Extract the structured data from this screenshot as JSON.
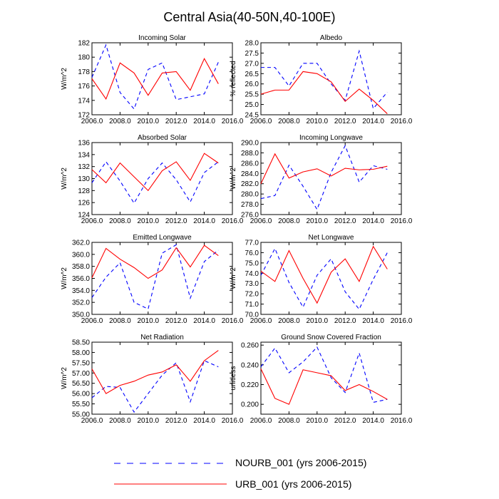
{
  "figure": {
    "title": "Central Asia(40-50N,40-100E)",
    "colors": {
      "nourb": "#0000ff",
      "urb": "#ff0000",
      "axis": "#000000"
    }
  },
  "legend": {
    "items": [
      {
        "label": "NOURB_001 (yrs 2006-2015)",
        "style": "dashed",
        "color": "#0000ff"
      },
      {
        "label": "URB_001 (yrs 2006-2015)",
        "style": "solid",
        "color": "#ff0000"
      }
    ]
  },
  "chart_data": [
    {
      "type": "line",
      "title": "Incoming Solar",
      "ylabel": "W/m^2",
      "xlim": [
        2006,
        2016
      ],
      "xticks": [
        "2006.0",
        "2008.0",
        "2010.0",
        "2012.0",
        "2014.0",
        "2016.0"
      ],
      "ylim": [
        172,
        182
      ],
      "yticks": [
        "172",
        "174",
        "176",
        "178",
        "180",
        "182"
      ],
      "x": [
        2006,
        2007,
        2008,
        2009,
        2010,
        2011,
        2012,
        2013,
        2014,
        2015
      ],
      "series": [
        {
          "name": "NOURB_001",
          "values": [
            177.2,
            181.7,
            175.1,
            172.8,
            178.3,
            179.2,
            174.1,
            174.5,
            174.9,
            179.3
          ]
        },
        {
          "name": "URB_001",
          "values": [
            177.0,
            174.2,
            179.2,
            177.8,
            174.7,
            177.8,
            178.0,
            175.4,
            179.8,
            176.3
          ]
        }
      ]
    },
    {
      "type": "line",
      "title": "Albedo",
      "ylabel": "% reflected",
      "xlim": [
        2006,
        2016
      ],
      "xticks": [
        "2006.0",
        "2008.0",
        "2010.0",
        "2012.0",
        "2014.0",
        "2016.0"
      ],
      "ylim": [
        24.5,
        28.0
      ],
      "yticks": [
        "24.5",
        "25.0",
        "25.5",
        "26.0",
        "26.5",
        "27.0",
        "27.5",
        "28.0"
      ],
      "x": [
        2006,
        2007,
        2008,
        2009,
        2010,
        2011,
        2012,
        2013,
        2014,
        2015
      ],
      "series": [
        {
          "name": "NOURB_001",
          "values": [
            26.8,
            26.8,
            25.9,
            27.0,
            27.0,
            26.0,
            25.2,
            27.6,
            24.8,
            25.6
          ]
        },
        {
          "name": "URB_001",
          "values": [
            25.5,
            25.7,
            25.7,
            26.6,
            26.5,
            26.1,
            25.15,
            25.75,
            25.2,
            24.55
          ]
        }
      ]
    },
    {
      "type": "line",
      "title": "Absorbed Solar",
      "ylabel": "W/m^2",
      "xlim": [
        2006,
        2016
      ],
      "xticks": [
        "2006.0",
        "2008.0",
        "2010.0",
        "2012.0",
        "2014.0",
        "2016.0"
      ],
      "ylim": [
        124,
        136
      ],
      "yticks": [
        "124",
        "126",
        "128",
        "130",
        "132",
        "134",
        "136"
      ],
      "x": [
        2006,
        2007,
        2008,
        2009,
        2010,
        2011,
        2012,
        2013,
        2014,
        2015
      ],
      "series": [
        {
          "name": "NOURB_001",
          "values": [
            129.3,
            132.8,
            129.6,
            125.9,
            130.0,
            132.6,
            129.8,
            126.1,
            131.0,
            132.8
          ]
        },
        {
          "name": "URB_001",
          "values": [
            131.5,
            129.3,
            132.6,
            130.3,
            128.0,
            131.3,
            132.8,
            129.7,
            134.2,
            132.6
          ]
        }
      ]
    },
    {
      "type": "line",
      "title": "Incoming Longwave",
      "ylabel": "W/m^2",
      "xlim": [
        2006,
        2016
      ],
      "xticks": [
        "2006.0",
        "2008.0",
        "2010.0",
        "2012.0",
        "2014.0",
        "2016.0"
      ],
      "ylim": [
        276.0,
        290.0
      ],
      "yticks": [
        "276.0",
        "278.0",
        "280.0",
        "282.0",
        "284.0",
        "286.0",
        "288.0",
        "290.0"
      ],
      "x": [
        2006,
        2007,
        2008,
        2009,
        2010,
        2011,
        2012,
        2013,
        2014,
        2015
      ],
      "series": [
        {
          "name": "NOURB_001",
          "values": [
            279.1,
            279.7,
            285.6,
            281.5,
            277.0,
            284.2,
            289.4,
            282.3,
            285.5,
            284.8
          ]
        },
        {
          "name": "URB_001",
          "values": [
            282.0,
            287.8,
            283.1,
            284.3,
            284.9,
            283.5,
            285.0,
            284.7,
            284.8,
            285.4
          ]
        }
      ]
    },
    {
      "type": "line",
      "title": "Emitted Longwave",
      "ylabel": "W/m^2",
      "xlim": [
        2006,
        2016
      ],
      "xticks": [
        "2006.0",
        "2008.0",
        "2010.0",
        "2012.0",
        "2014.0",
        "2016.0"
      ],
      "ylim": [
        350.0,
        362.0
      ],
      "yticks": [
        "350.0",
        "352.0",
        "354.0",
        "356.0",
        "358.0",
        "360.0",
        "362.0"
      ],
      "x": [
        2006,
        2007,
        2008,
        2009,
        2010,
        2011,
        2012,
        2013,
        2014,
        2015
      ],
      "series": [
        {
          "name": "NOURB_001",
          "values": [
            352.8,
            356.2,
            358.6,
            352.0,
            350.9,
            360.2,
            361.6,
            352.7,
            358.8,
            360.7
          ]
        },
        {
          "name": "URB_001",
          "values": [
            356.1,
            361.0,
            359.2,
            357.8,
            356.0,
            357.4,
            361.1,
            357.9,
            361.5,
            359.8
          ]
        }
      ]
    },
    {
      "type": "line",
      "title": "Net Longwave",
      "ylabel": "W/m^2",
      "xlim": [
        2006,
        2016
      ],
      "xticks": [
        "2006.0",
        "2008.0",
        "2010.0",
        "2012.0",
        "2014.0",
        "2016.0"
      ],
      "ylim": [
        70.0,
        77.0
      ],
      "yticks": [
        "70.0",
        "71.0",
        "72.0",
        "73.0",
        "74.0",
        "75.0",
        "76.0",
        "77.0"
      ],
      "x": [
        2006,
        2007,
        2008,
        2009,
        2010,
        2011,
        2012,
        2013,
        2014,
        2015
      ],
      "series": [
        {
          "name": "NOURB_001",
          "values": [
            73.8,
            76.4,
            73.1,
            70.7,
            73.8,
            75.4,
            72.2,
            70.5,
            73.4,
            76.0
          ]
        },
        {
          "name": "URB_001",
          "values": [
            74.2,
            73.2,
            76.2,
            73.5,
            71.1,
            74.1,
            75.4,
            73.2,
            76.6,
            74.4
          ]
        }
      ]
    },
    {
      "type": "line",
      "title": "Net Radiation",
      "ylabel": "W/m^2",
      "xlim": [
        2006,
        2016
      ],
      "xticks": [
        "2006.0",
        "2008.0",
        "2010.0",
        "2012.0",
        "2014.0",
        "2016.0"
      ],
      "ylim": [
        55.0,
        58.5
      ],
      "yticks": [
        "55.00",
        "55.50",
        "56.00",
        "56.50",
        "57.00",
        "57.50",
        "58.00",
        "58.50"
      ],
      "x": [
        2006,
        2007,
        2008,
        2009,
        2010,
        2011,
        2012,
        2013,
        2014,
        2015
      ],
      "series": [
        {
          "name": "NOURB_001",
          "values": [
            55.8,
            56.35,
            56.3,
            55.1,
            56.0,
            56.9,
            57.5,
            55.6,
            57.6,
            57.3
          ]
        },
        {
          "name": "URB_001",
          "values": [
            57.2,
            56.0,
            56.4,
            56.6,
            56.9,
            57.05,
            57.4,
            56.6,
            57.6,
            58.1
          ]
        }
      ]
    },
    {
      "type": "line",
      "title": "Ground Snow Covered Fraction",
      "ylabel": "unitless",
      "xlim": [
        2006,
        2016
      ],
      "xticks": [
        "2006.0",
        "2008.0",
        "2010.0",
        "2012.0",
        "2014.0",
        "2016.0"
      ],
      "ylim": [
        0.19,
        0.263
      ],
      "yticks": [
        "0.200",
        "0.220",
        "0.240",
        "0.260"
      ],
      "x": [
        2006,
        2007,
        2008,
        2009,
        2010,
        2011,
        2012,
        2013,
        2014,
        2015
      ],
      "series": [
        {
          "name": "NOURB_001",
          "values": [
            0.238,
            0.257,
            0.232,
            0.243,
            0.258,
            0.227,
            0.212,
            0.252,
            0.202,
            0.205
          ]
        },
        {
          "name": "URB_001",
          "values": [
            0.236,
            0.206,
            0.2,
            0.235,
            0.232,
            0.229,
            0.214,
            0.22,
            0.213,
            0.205
          ]
        }
      ]
    }
  ]
}
